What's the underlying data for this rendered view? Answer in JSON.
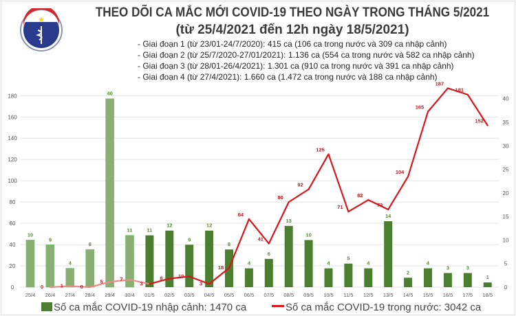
{
  "header": {
    "logo_text": "BỘ Y TẾ · MINISTRY OF HEALTH",
    "title": "THEO DÕI CA MẮC MỚI COVID-19 THEO NGÀY TRONG THÁNG 5/2021",
    "subtitle": "(từ 25/4/2021 đến 12h ngày 18/5/2021)",
    "notes": [
      "- Giai đoạn 1 (từ 23/01-24/7/2020): 415 ca (106 ca trong nước và 309 ca nhập cảnh)",
      "- Giai đoạn 2 (từ 25/7/2020-27/01/2021): 1.136 ca (554 ca trong nước và 582 ca nhập cảnh)",
      "- Giai đoạn 3 (từ 28/01-26/4/2021): 1.301 ca (910 ca trong nước và 391 ca nhập cảnh)",
      "- Giai đoạn 4 (từ 27/4/2021): 1.660 ca (1.472 ca trong nước và 188 ca nhập cảnh)"
    ]
  },
  "chart_data": {
    "type": "bar+line",
    "categories": [
      "25/4",
      "26/4",
      "27/4",
      "28/4",
      "29/4",
      "30/4",
      "01/5",
      "02/5",
      "03/5",
      "04/5",
      "05/5",
      "06/5",
      "07/5",
      "08/5",
      "09/5",
      "10/5",
      "11/5",
      "12/5",
      "13/5",
      "14/5",
      "15/5",
      "16/5",
      "17/5",
      "18/5"
    ],
    "series": [
      {
        "name": "Số ca mắc COVID-19 nhập cảnh: 1470 ca",
        "type": "bar",
        "axis": "right",
        "color": "#4b7f2f",
        "faded_color": "#8bae72",
        "values": [
          10,
          9,
          4,
          8,
          40,
          11,
          11,
          12,
          9,
          12,
          8,
          4,
          6,
          13,
          10,
          4,
          5,
          4,
          14,
          2,
          4,
          3,
          3,
          1
        ]
      },
      {
        "name": "Số ca mắc COVID-19 trong nước: 3042 ca",
        "type": "line",
        "axis": "left",
        "color": "#d9151b",
        "faded_color": "#ee8a8a",
        "values": [
          null,
          0,
          1,
          0,
          5,
          7,
          3,
          8,
          10,
          3,
          18,
          64,
          41,
          80,
          92,
          125,
          71,
          82,
          73,
          104,
          165,
          187,
          181,
          152
        ]
      }
    ],
    "faded_through": "01/5",
    "left_axis": {
      "ticks": [
        0,
        20,
        40,
        60,
        80,
        100,
        120,
        140,
        160,
        180
      ],
      "ylim": [
        0,
        186
      ]
    },
    "right_axis": {
      "ticks": [
        0,
        5,
        10,
        15,
        20,
        25,
        30,
        35,
        40
      ],
      "ylim": [
        0,
        42
      ]
    },
    "grid": true,
    "legend": "bottom"
  }
}
